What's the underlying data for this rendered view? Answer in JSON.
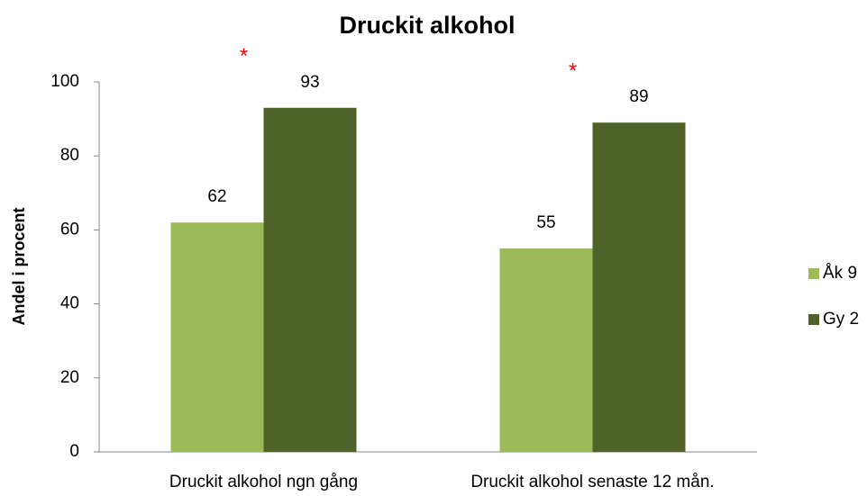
{
  "chart_data": {
    "type": "bar",
    "title": "Druckit alkohol",
    "y_label": "Andel i procent",
    "categories": [
      "Druckit alkohol ngn gång",
      "Druckit alkohol senaste 12 mån."
    ],
    "series": [
      {
        "name": "Åk 9",
        "color": "#9bbb59",
        "values": [
          62,
          55
        ]
      },
      {
        "name": "Gy 2",
        "color": "#4f6228",
        "values": [
          93,
          89
        ]
      }
    ],
    "annotations": [
      "*",
      "*"
    ],
    "ylim": [
      0,
      100
    ],
    "yticks": [
      0,
      20,
      40,
      60,
      80,
      100
    ],
    "grid": false,
    "legend": "right"
  }
}
